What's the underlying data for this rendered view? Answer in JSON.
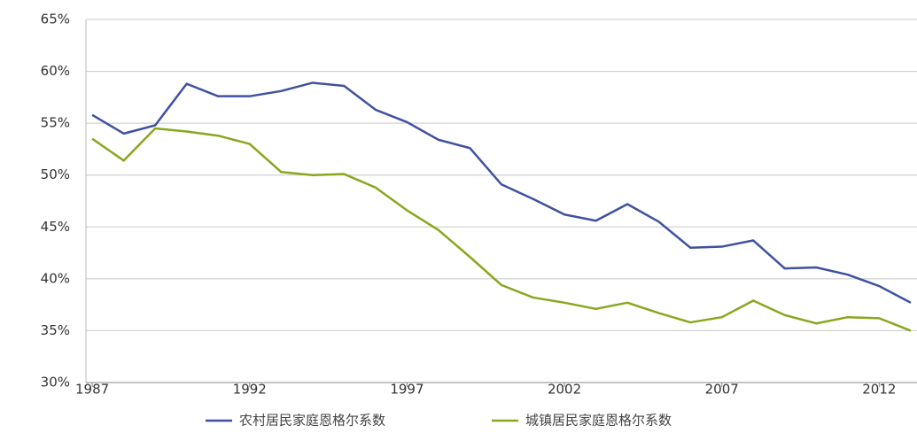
{
  "chart_data": {
    "type": "line",
    "x": [
      1987,
      1988,
      1989,
      1990,
      1991,
      1992,
      1993,
      1994,
      1995,
      1996,
      1997,
      1998,
      1999,
      2000,
      2001,
      2002,
      2003,
      2004,
      2005,
      2006,
      2007,
      2008,
      2009,
      2010,
      2011,
      2012,
      2013
    ],
    "series": [
      {
        "name": "农村居民家庭恩格尔系数",
        "color": "#3f51a0",
        "values": [
          55.8,
          54.0,
          54.8,
          58.8,
          57.6,
          57.6,
          58.1,
          58.9,
          58.6,
          56.3,
          55.1,
          53.4,
          52.6,
          49.1,
          47.7,
          46.2,
          45.6,
          47.2,
          45.5,
          43.0,
          43.1,
          43.7,
          41.0,
          41.1,
          40.4,
          39.3,
          37.7
        ]
      },
      {
        "name": "城镇居民家庭恩格尔系数",
        "color": "#8aa61e",
        "values": [
          53.5,
          51.4,
          54.5,
          54.2,
          53.8,
          53.0,
          50.3,
          50.0,
          50.1,
          48.8,
          46.6,
          44.7,
          42.1,
          39.4,
          38.2,
          37.7,
          37.1,
          37.7,
          36.7,
          35.8,
          36.3,
          37.9,
          36.5,
          35.7,
          36.3,
          36.2,
          35.0
        ]
      }
    ],
    "xlim": [
      1986.8,
      2013.2
    ],
    "xticks": [
      1987,
      1992,
      1997,
      2002,
      2007,
      2012
    ],
    "ylim": [
      30,
      65
    ],
    "yticks": [
      {
        "value": 30,
        "label": "30%"
      },
      {
        "value": 35,
        "label": "35%"
      },
      {
        "value": 40,
        "label": "40%"
      },
      {
        "value": 45,
        "label": "45%"
      },
      {
        "value": 50,
        "label": "50%"
      },
      {
        "value": 55,
        "label": "55%"
      },
      {
        "value": 60,
        "label": "60%"
      },
      {
        "value": 65,
        "label": "65%"
      }
    ],
    "grid": true,
    "legend": "bottom"
  }
}
